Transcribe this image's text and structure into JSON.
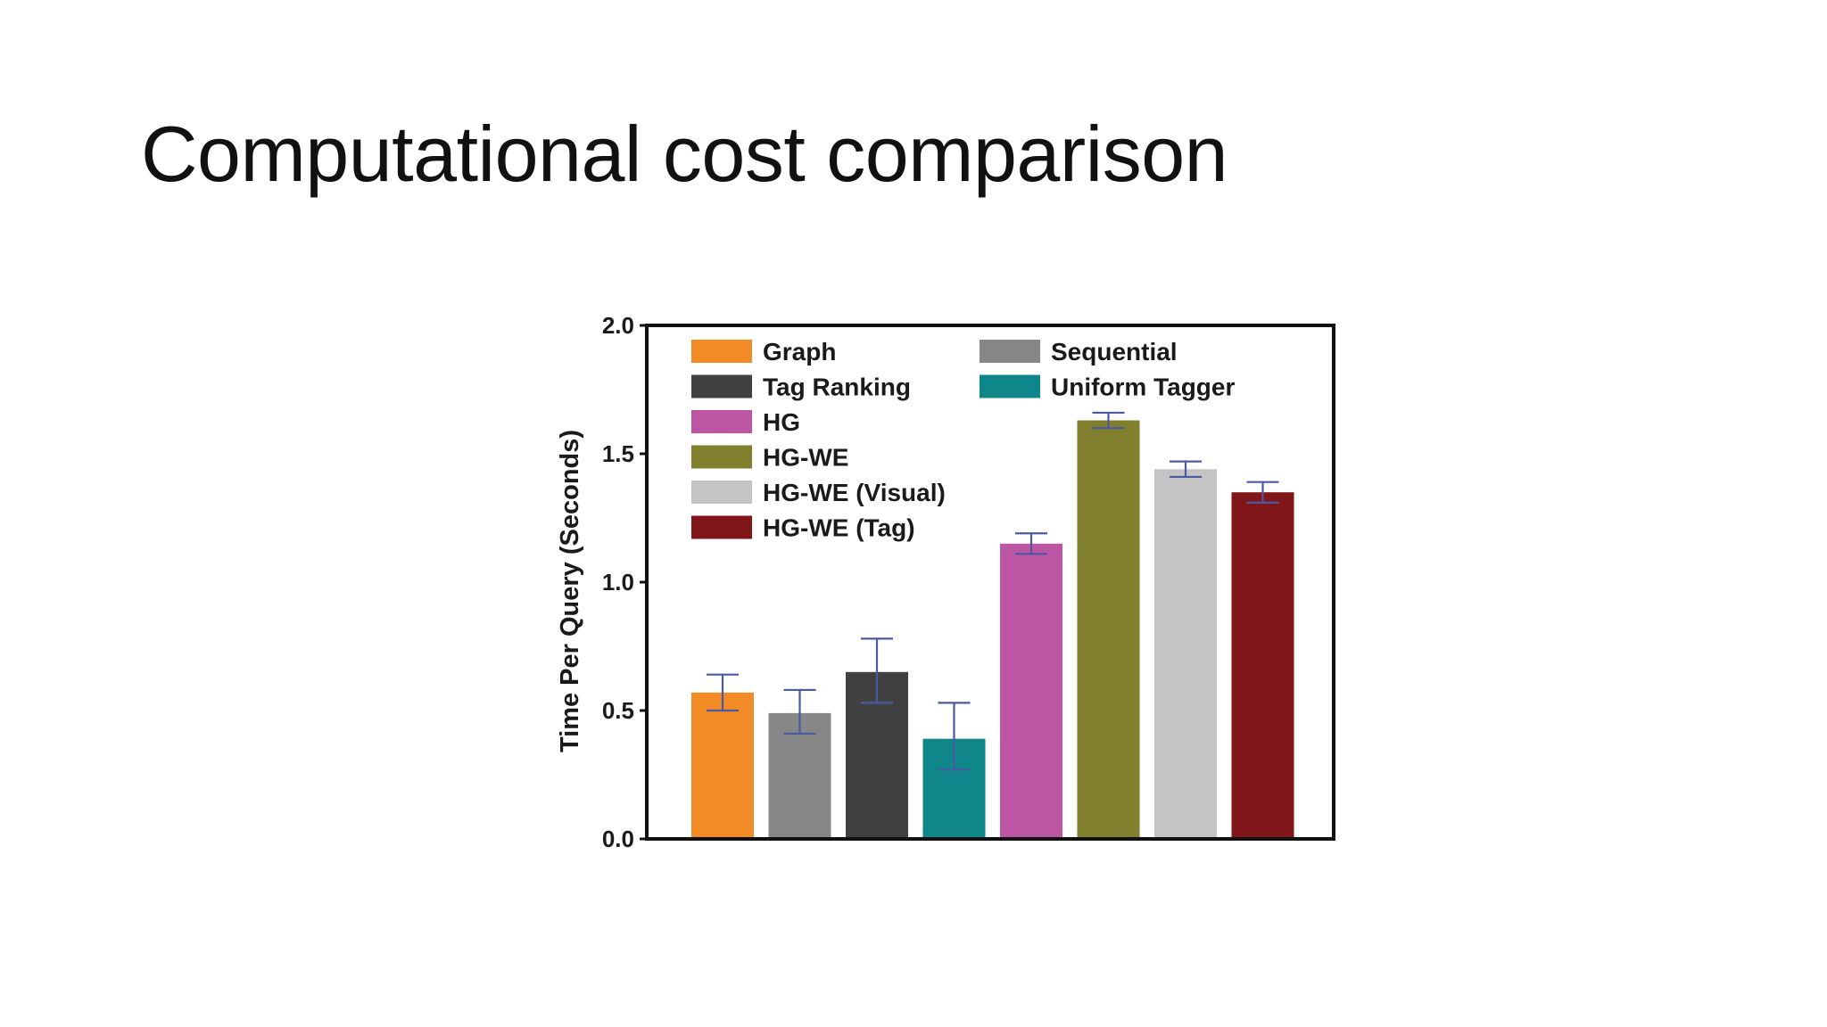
{
  "slide": {
    "title": "Computational cost comparison"
  },
  "chart_data": {
    "type": "bar",
    "title": "",
    "xlabel": "",
    "ylabel": "Time Per Query (Seconds)",
    "ylim": [
      0,
      2.0
    ],
    "yticks": [
      0.0,
      0.5,
      1.0,
      1.5,
      2.0
    ],
    "ytick_labels": [
      "0.0",
      "0.5",
      "1.0",
      "1.5",
      "2.0"
    ],
    "grid": false,
    "legend_position": "top-left",
    "series": [
      {
        "name": "Graph",
        "value": 0.57,
        "err_low": 0.5,
        "err_high": 0.64,
        "color": "#f28a26"
      },
      {
        "name": "Sequential",
        "value": 0.49,
        "err_low": 0.41,
        "err_high": 0.58,
        "color": "#878787"
      },
      {
        "name": "Tag Ranking",
        "value": 0.65,
        "err_low": 0.53,
        "err_high": 0.78,
        "color": "#404040"
      },
      {
        "name": "Uniform Tagger",
        "value": 0.39,
        "err_low": 0.27,
        "err_high": 0.53,
        "color": "#0f868a"
      },
      {
        "name": "HG",
        "value": 1.15,
        "err_low": 1.11,
        "err_high": 1.19,
        "color": "#bd55a5"
      },
      {
        "name": "HG-WE",
        "value": 1.63,
        "err_low": 1.6,
        "err_high": 1.66,
        "color": "#7f7f2d"
      },
      {
        "name": "HG-WE (Visual)",
        "value": 1.44,
        "err_low": 1.41,
        "err_high": 1.47,
        "color": "#c4c4c4"
      },
      {
        "name": "HG-WE (Tag)",
        "value": 1.35,
        "err_low": 1.31,
        "err_high": 1.39,
        "color": "#80161a"
      }
    ],
    "legend_order": [
      "Graph",
      "Sequential",
      "Tag Ranking",
      "Uniform Tagger",
      "HG",
      "HG-WE",
      "HG-WE (Visual)",
      "HG-WE (Tag)"
    ],
    "error_bar_color": "#4a5aa0"
  }
}
